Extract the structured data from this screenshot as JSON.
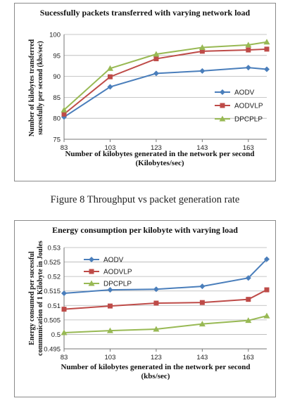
{
  "chart_data": [
    {
      "type": "line",
      "title": "Sucessfully packets transferred with varying network load",
      "xlabel_lines": [
        "Number of kilobytes generated in the network per second",
        "(Kilobytes/sec)"
      ],
      "ylabel_lines": [
        "Number of kilobytes transferred",
        "sucessfully per second (kbs/sec)"
      ],
      "x": [
        83,
        103,
        123,
        143,
        163,
        171
      ],
      "xticks": [
        83,
        103,
        123,
        143,
        163
      ],
      "ylim": [
        75,
        100
      ],
      "yticks": [
        75,
        80,
        85,
        90,
        95,
        100
      ],
      "grid": "horizontal",
      "legend": "right",
      "series": [
        {
          "name": "AODV",
          "color": "#4a7ebb",
          "marker": "diamond",
          "values": [
            80.3,
            87.5,
            90.7,
            91.3,
            92.1,
            91.7
          ]
        },
        {
          "name": "AODVLP",
          "color": "#be4b48",
          "marker": "square",
          "values": [
            81.0,
            89.9,
            94.2,
            96.0,
            96.3,
            96.5
          ]
        },
        {
          "name": "DPCPLP",
          "color": "#98b954",
          "marker": "triangle",
          "values": [
            82.0,
            91.9,
            95.3,
            96.9,
            97.5,
            98.2
          ]
        }
      ]
    },
    {
      "type": "line",
      "title": "Energy consumption per kilobyte with varying load",
      "xlabel_lines": [
        "Number of kilobytes generated in the network per second",
        "(kbs/sec)"
      ],
      "ylabel_lines": [
        "Energy consumed per sucessful",
        "communication of 1 Kilobyte in Joules"
      ],
      "x": [
        83,
        103,
        123,
        143,
        163,
        171
      ],
      "xticks": [
        83,
        103,
        123,
        143,
        163
      ],
      "ylim": [
        0.495,
        0.53
      ],
      "yticks": [
        0.495,
        0.5,
        0.505,
        0.51,
        0.515,
        0.52,
        0.525,
        0.53
      ],
      "yticklabels": [
        "0.495",
        "0.5",
        "0.505",
        "0.51",
        "0.515",
        "0.52",
        "0.525",
        "0.53"
      ],
      "grid": "horizontal",
      "legend": "top-left",
      "series": [
        {
          "name": "AODV",
          "color": "#4a7ebb",
          "marker": "diamond",
          "values": [
            0.5142,
            0.5154,
            0.5156,
            0.5166,
            0.5195,
            0.526
          ]
        },
        {
          "name": "AODVLP",
          "color": "#be4b48",
          "marker": "square",
          "values": [
            0.5087,
            0.5098,
            0.5108,
            0.511,
            0.5121,
            0.5154
          ]
        },
        {
          "name": "DPCPLP",
          "color": "#98b954",
          "marker": "triangle",
          "values": [
            0.5006,
            0.5013,
            0.5018,
            0.5036,
            0.5048,
            0.5064
          ]
        }
      ]
    }
  ],
  "caption": "Figure 8 Throughput vs packet generation rate"
}
